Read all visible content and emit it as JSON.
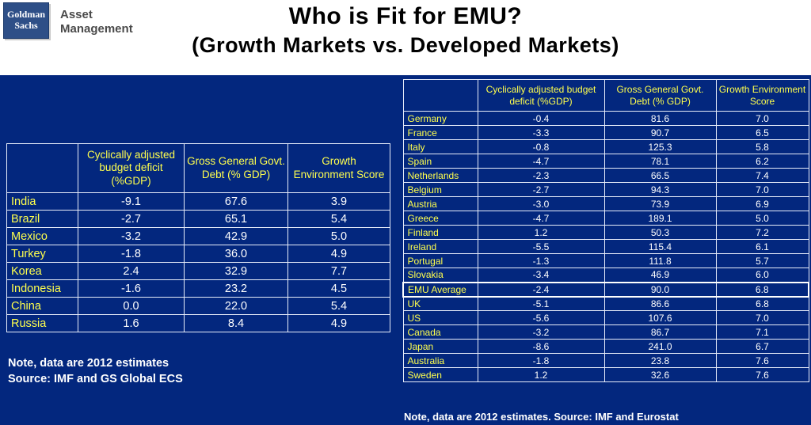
{
  "header": {
    "logo": {
      "line1": "Goldman",
      "line2": "Sachs"
    },
    "brand": "Asset Management",
    "title_line1": "Who is Fit for EMU?",
    "title_line2": "(Growth Markets vs. Developed Markets)"
  },
  "colors": {
    "background_blue": "#03277e",
    "text_yellow": "#ffff4d",
    "text_white": "#ffffff",
    "logo_blue": "#2e4f87",
    "title_black": "#000000"
  },
  "left_table": {
    "columns": [
      "Cyclically adjusted budget deficit (%GDP)",
      "Gross General Govt. Debt (% GDP)",
      "Growth Environment Score"
    ],
    "rows": [
      {
        "country": "India",
        "values": [
          "-9.1",
          "67.6",
          "3.9"
        ]
      },
      {
        "country": "Brazil",
        "values": [
          "-2.7",
          "65.1",
          "5.4"
        ]
      },
      {
        "country": "Mexico",
        "values": [
          "-3.2",
          "42.9",
          "5.0"
        ]
      },
      {
        "country": "Turkey",
        "values": [
          "-1.8",
          "36.0",
          "4.9"
        ]
      },
      {
        "country": "Korea",
        "values": [
          "2.4",
          "32.9",
          "7.7"
        ]
      },
      {
        "country": "Indonesia",
        "values": [
          "-1.6",
          "23.2",
          "4.5"
        ]
      },
      {
        "country": "China",
        "values": [
          "0.0",
          "22.0",
          "5.4"
        ]
      },
      {
        "country": "Russia",
        "values": [
          "1.6",
          "8.4",
          "4.9"
        ]
      }
    ],
    "note_line1": "Note,  data are 2012 estimates",
    "note_line2": "Source: IMF and GS Global ECS"
  },
  "right_table": {
    "columns": [
      "Cyclically adjusted budget deficit (%GDP)",
      "Gross General Govt. Debt (% GDP)",
      "Growth Environment Score"
    ],
    "rows": [
      {
        "country": "Germany",
        "values": [
          "-0.4",
          "81.6",
          "7.0"
        ]
      },
      {
        "country": "France",
        "values": [
          "-3.3",
          "90.7",
          "6.5"
        ]
      },
      {
        "country": "Italy",
        "values": [
          "-0.8",
          "125.3",
          "5.8"
        ]
      },
      {
        "country": "Spain",
        "values": [
          "-4.7",
          "78.1",
          "6.2"
        ]
      },
      {
        "country": "Netherlands",
        "values": [
          "-2.3",
          "66.5",
          "7.4"
        ]
      },
      {
        "country": "Belgium",
        "values": [
          "-2.7",
          "94.3",
          "7.0"
        ]
      },
      {
        "country": "Austria",
        "values": [
          "-3.0",
          "73.9",
          "6.9"
        ]
      },
      {
        "country": "Greece",
        "values": [
          "-4.7",
          "189.1",
          "5.0"
        ]
      },
      {
        "country": "Finland",
        "values": [
          "1.2",
          "50.3",
          "7.2"
        ]
      },
      {
        "country": "Ireland",
        "values": [
          "-5.5",
          "115.4",
          "6.1"
        ]
      },
      {
        "country": "Portugal",
        "values": [
          "-1.3",
          "111.8",
          "5.7"
        ]
      },
      {
        "country": "Slovakia",
        "values": [
          "-3.4",
          "46.9",
          "6.0"
        ]
      },
      {
        "country": "EMU Average",
        "values": [
          "-2.4",
          "90.0",
          "6.8"
        ],
        "highlight": true
      },
      {
        "country": "UK",
        "values": [
          "-5.1",
          "86.6",
          "6.8"
        ]
      },
      {
        "country": "US",
        "values": [
          "-5.6",
          "107.6",
          "7.0"
        ]
      },
      {
        "country": "Canada",
        "values": [
          "-3.2",
          "86.7",
          "7.1"
        ]
      },
      {
        "country": "Japan",
        "values": [
          "-8.6",
          "241.0",
          "6.7"
        ]
      },
      {
        "country": "Australia",
        "values": [
          "-1.8",
          "23.8",
          "7.6"
        ]
      },
      {
        "country": "Sweden",
        "values": [
          "1.2",
          "32.6",
          "7.6"
        ]
      }
    ],
    "note": "Note, data are 2012 estimates. Source: IMF and Eurostat"
  }
}
